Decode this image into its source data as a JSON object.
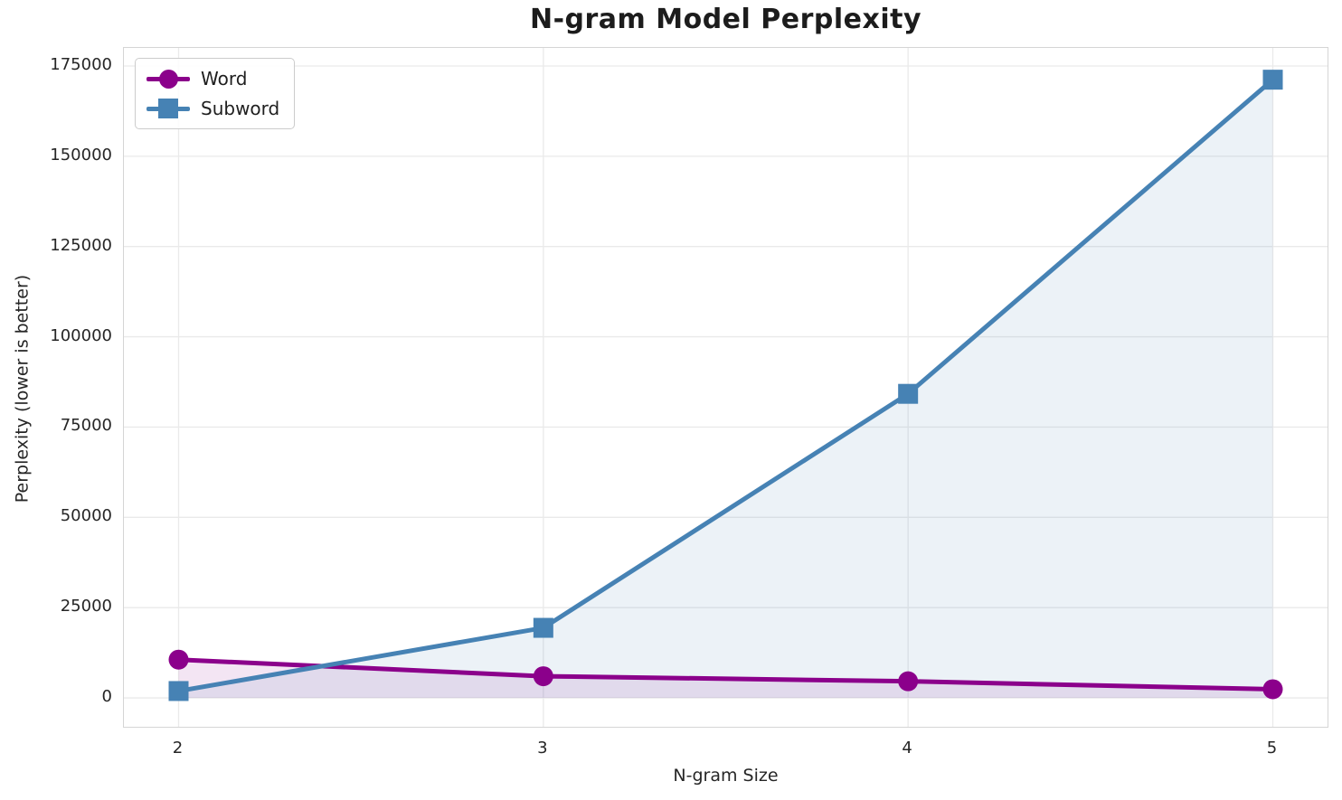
{
  "chart_data": {
    "type": "line",
    "title": "N-gram Model Perplexity",
    "xlabel": "N-gram Size",
    "ylabel": "Perplexity (lower is better)",
    "x": [
      2,
      3,
      4,
      5
    ],
    "series": [
      {
        "name": "Word",
        "values": [
          10600,
          6000,
          4600,
          2400
        ],
        "color": "#8B008B",
        "marker": "circle"
      },
      {
        "name": "Subword",
        "values": [
          1900,
          19400,
          84200,
          171200
        ],
        "color": "#4682B4",
        "marker": "square"
      }
    ],
    "fill_to_zero": true,
    "fill_alpha": 0.1,
    "xlim": [
      1.85,
      5.15
    ],
    "ylim": [
      -8000,
      180000
    ],
    "xticks": [
      2,
      3,
      4,
      5
    ],
    "yticks": [
      0,
      25000,
      50000,
      75000,
      100000,
      125000,
      150000,
      175000
    ],
    "grid": true,
    "legend_position": "upper left",
    "grid_color": "#eaeaea",
    "spine_color": "#d5d5d5",
    "line_width": 5
  }
}
